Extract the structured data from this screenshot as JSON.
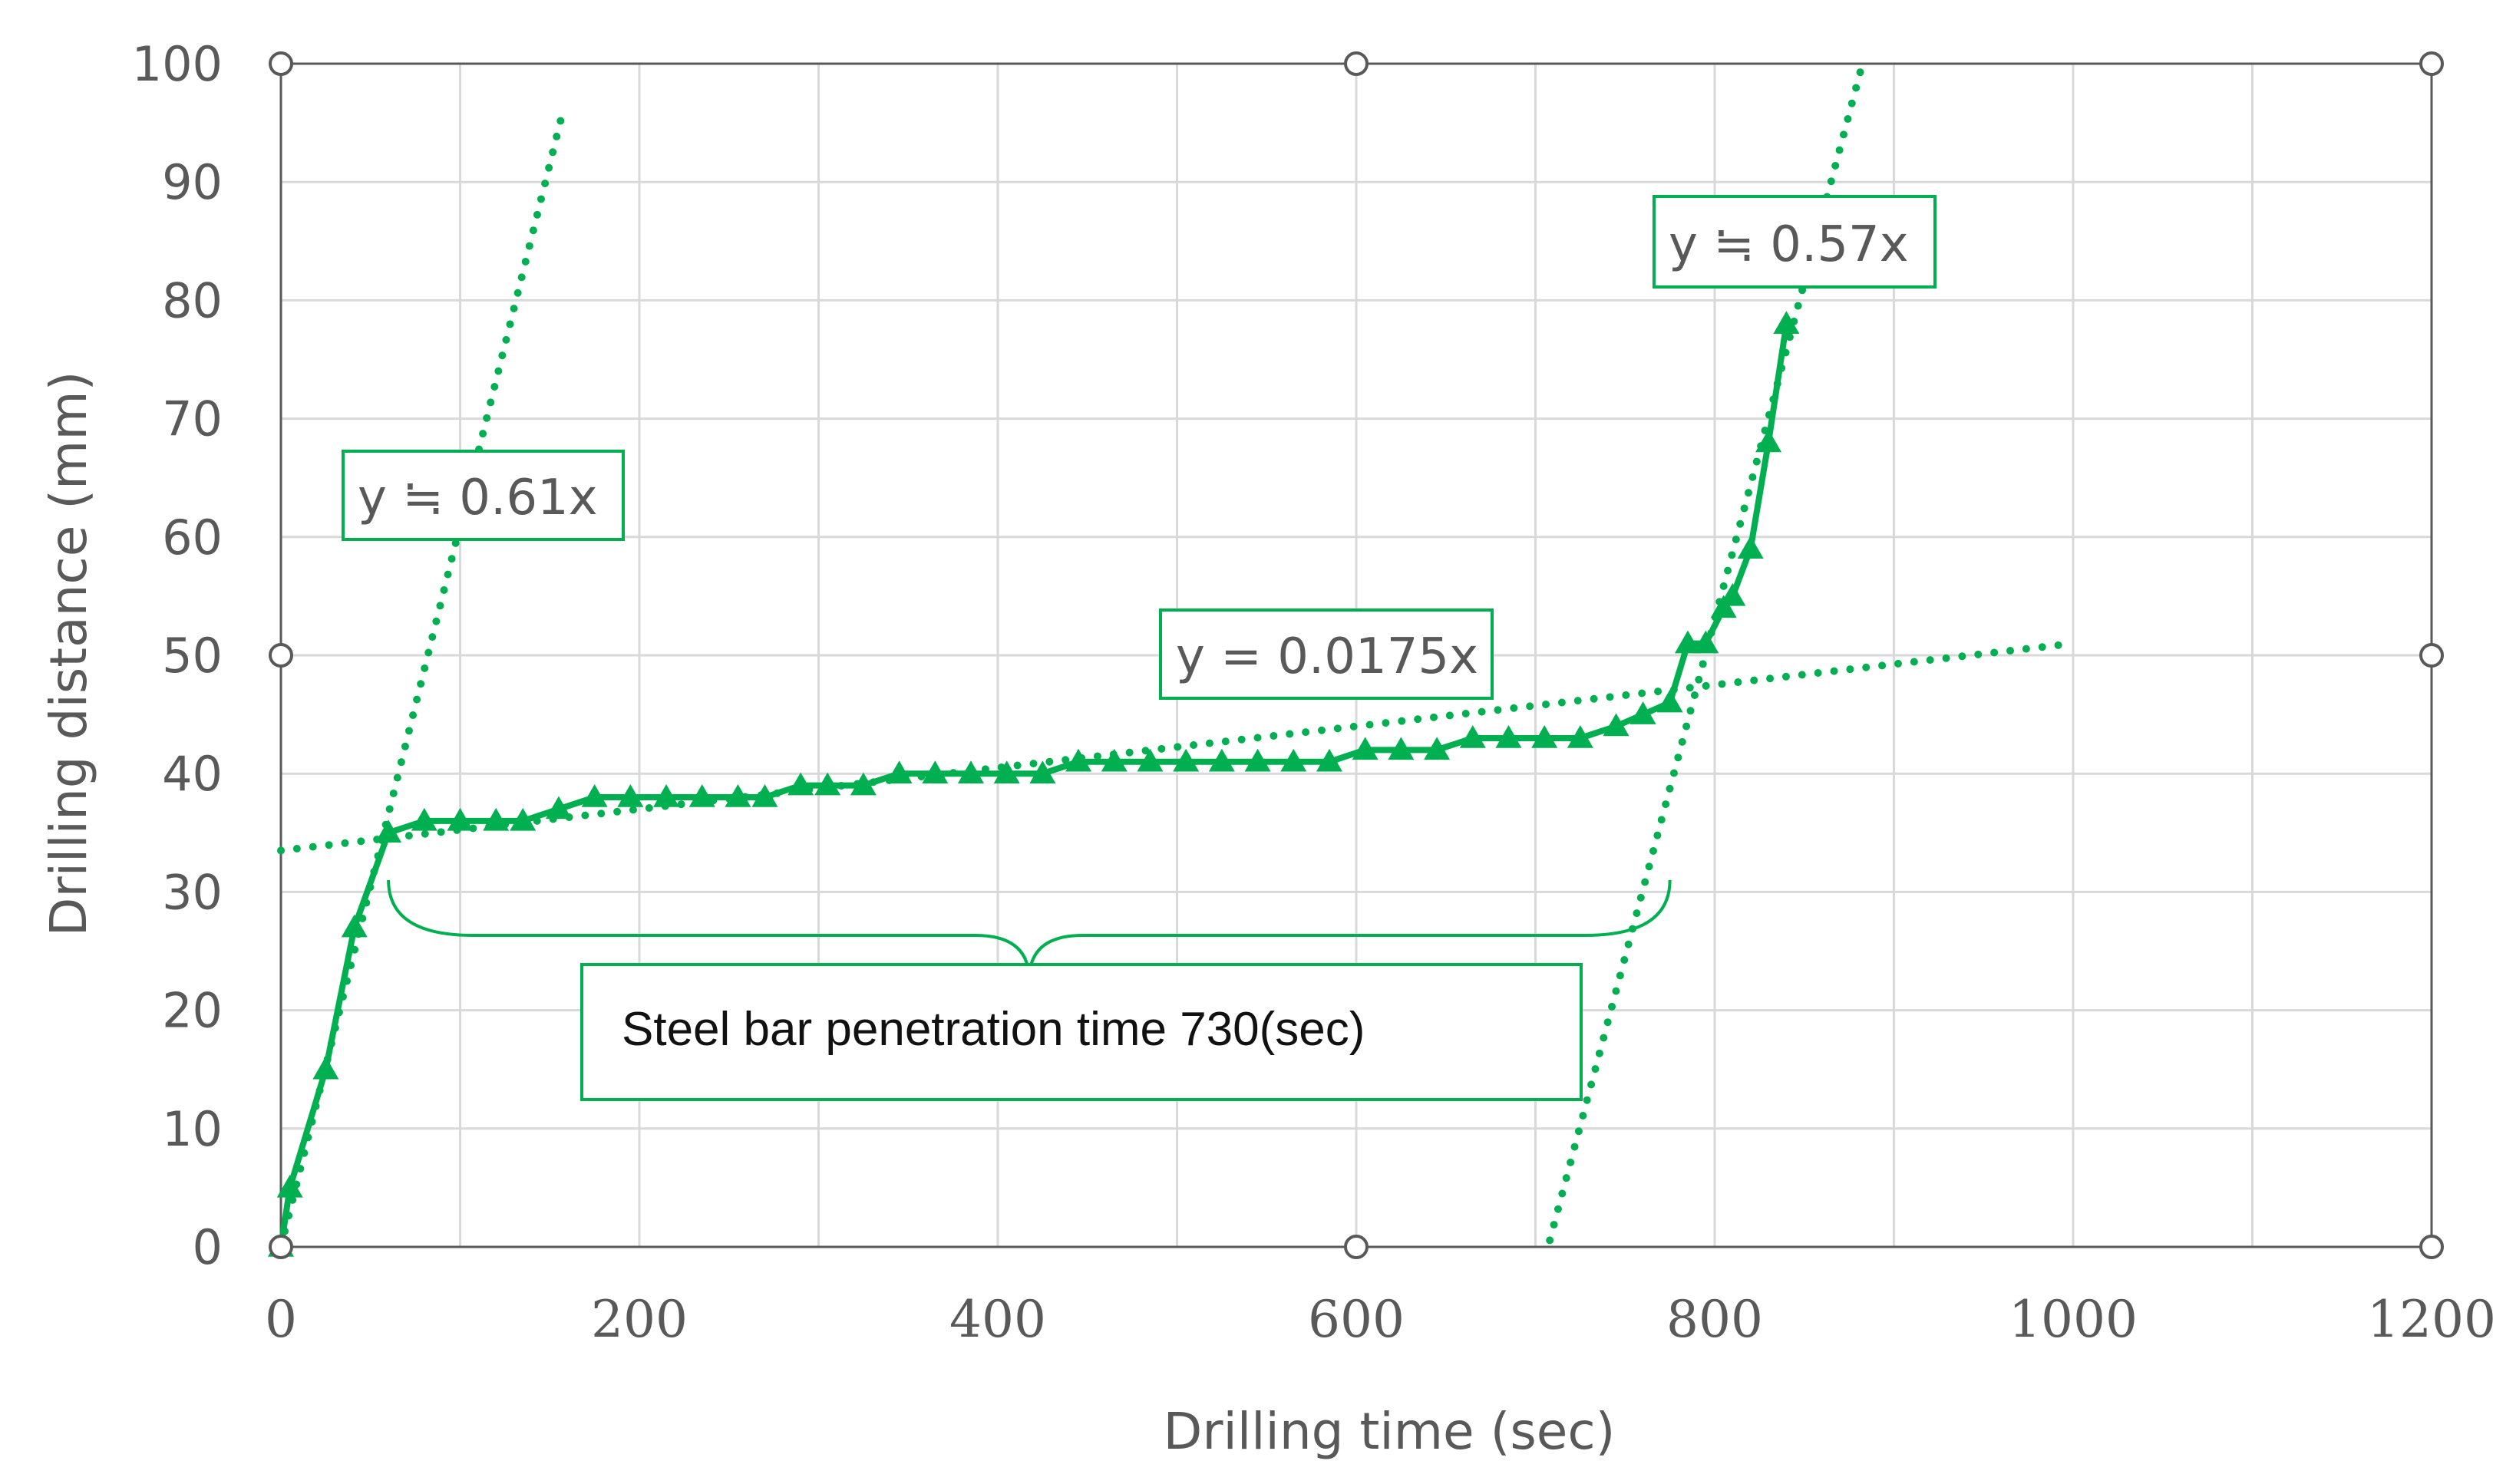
{
  "chart_data": {
    "type": "scatter",
    "title": "",
    "xlabel": "Drilling time (sec)",
    "ylabel": "Drilling distance (mm)",
    "xlim": [
      0,
      1200
    ],
    "ylim": [
      0,
      100
    ],
    "x_ticks": [
      0,
      200,
      400,
      600,
      800,
      1000,
      1200
    ],
    "y_ticks": [
      0,
      10,
      20,
      30,
      40,
      50,
      60,
      70,
      80,
      90,
      100
    ],
    "x_tick_labels": [
      "0",
      "200",
      "400",
      "600",
      "800",
      "1000",
      "1200"
    ],
    "y_tick_labels": [
      "0",
      "10",
      "20",
      "30",
      "40",
      "50",
      "60",
      "70",
      "80",
      "90",
      "100"
    ],
    "grid": true,
    "legend": "none",
    "colors": {
      "series": "#00b050",
      "grid": "#d9d9d9",
      "frame": "#595959",
      "text": "#595959"
    },
    "series": [
      {
        "name": "Drilling distance",
        "marker": "triangle",
        "x": [
          0,
          5,
          25,
          41,
          60,
          80,
          100,
          120,
          135,
          155,
          175,
          195,
          215,
          235,
          255,
          270,
          290,
          305,
          325,
          345,
          365,
          385,
          405,
          425,
          445,
          465,
          485,
          505,
          525,
          545,
          565,
          585,
          605,
          625,
          645,
          665,
          685,
          705,
          725,
          745,
          760,
          775,
          785,
          795,
          805,
          810,
          820,
          830,
          840
        ],
        "y": [
          0,
          5,
          15,
          27,
          35,
          36,
          36,
          36,
          36,
          37,
          38,
          38,
          38,
          38,
          38,
          38,
          39,
          39,
          39,
          40,
          40,
          40,
          40,
          40,
          41,
          41,
          41,
          41,
          41,
          41,
          41,
          41,
          42,
          42,
          42,
          43,
          43,
          43,
          43,
          44,
          45,
          46,
          51,
          51,
          54,
          55,
          59,
          68,
          78
        ]
      }
    ],
    "trendlines": [
      {
        "label": "y ≒ 0.61x",
        "slope": 0.61,
        "intercept": 0,
        "x_range": [
          0,
          157
        ]
      },
      {
        "label": "y = 0.0175x",
        "slope": 0.0175,
        "intercept": 33.5,
        "x_range": [
          0,
          1000
        ]
      },
      {
        "label": "y ≒ 0.57x",
        "slope": 0.57,
        "intercept": -403,
        "x_range": [
          708,
          882
        ]
      }
    ],
    "annotations": [
      {
        "text": "Steel bar penetration time 730(sec)",
        "x_start": 60,
        "x_end": 775,
        "y": 31
      }
    ]
  }
}
